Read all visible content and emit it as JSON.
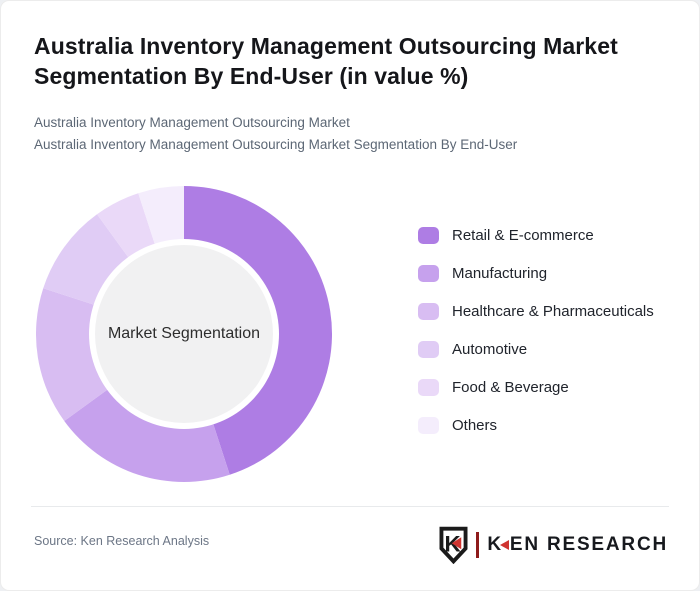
{
  "header": {
    "title": "Australia Inventory Management Outsourcing Market Segmentation By End-User (in value %)",
    "subtitle_line1": "Australia Inventory Management Outsourcing Market",
    "subtitle_line2": "Australia Inventory Management Outsourcing Market Segmentation By End-User"
  },
  "chart_data": {
    "type": "pie",
    "variant": "donut",
    "title": "Australia Inventory Management Outsourcing Market Segmentation By End-User (in value %)",
    "center_label": "Market Segmentation",
    "start_angle_deg": 0,
    "direction": "clockwise",
    "legend_position": "right",
    "hole_color": "#f1f1f2",
    "segments": [
      {
        "label": "Retail & E-commerce",
        "value_pct": 45,
        "color": "#ae7de4"
      },
      {
        "label": "Manufacturing",
        "value_pct": 20,
        "color": "#c6a1ed"
      },
      {
        "label": "Healthcare & Pharmaceuticals",
        "value_pct": 15,
        "color": "#d8bdf2"
      },
      {
        "label": "Automotive",
        "value_pct": 10,
        "color": "#e0ccf5"
      },
      {
        "label": "Food & Beverage",
        "value_pct": 5,
        "color": "#ead9f8"
      },
      {
        "label": "Others",
        "value_pct": 5,
        "color": "#f4edfc"
      }
    ]
  },
  "footer": {
    "source_text": "Source: Ken Research Analysis",
    "logo": {
      "shield_letter": "K",
      "wordmark_k": "K",
      "wordmark_rest": "EN RESEARCH",
      "accent_red": "#cf3430",
      "separator_red": "#8e1b1b"
    }
  }
}
